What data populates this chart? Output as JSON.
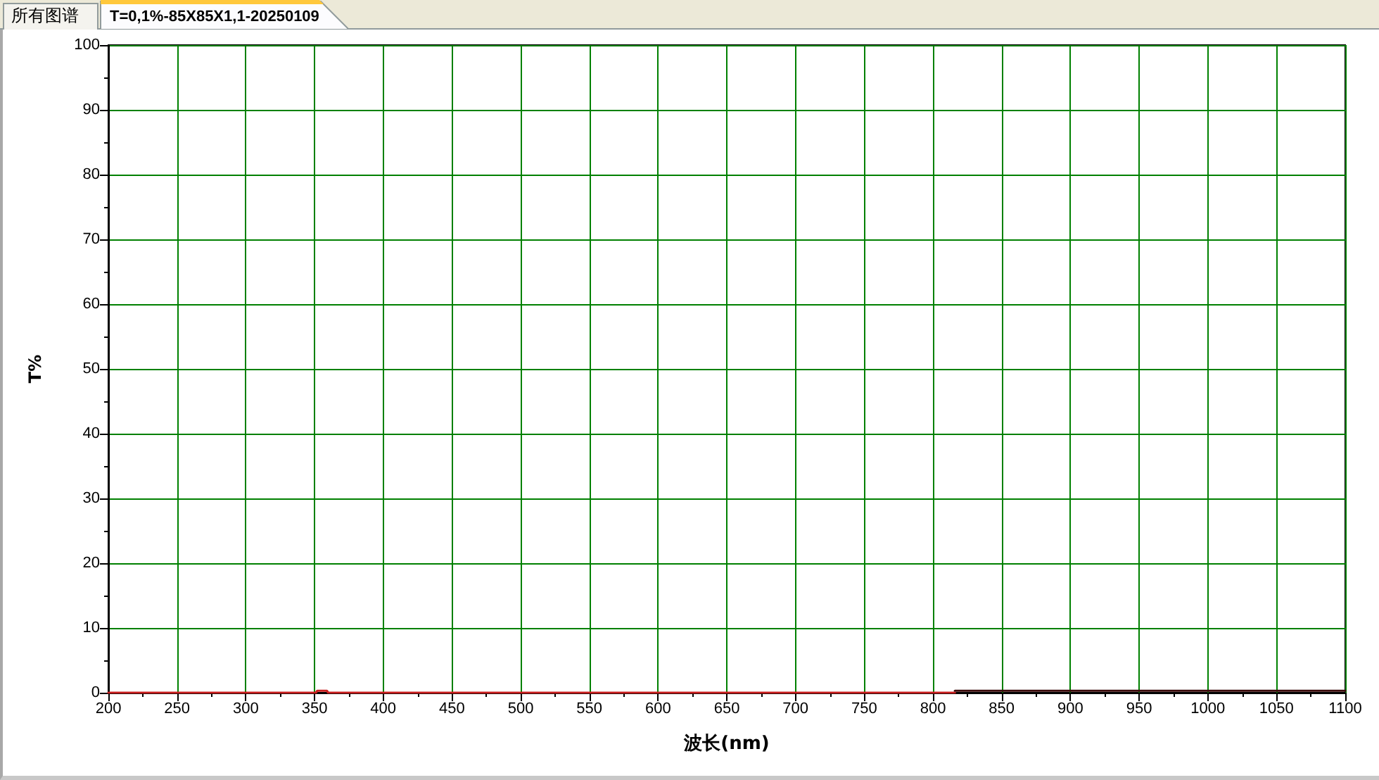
{
  "chart_data": {
    "type": "line",
    "title": "T=0,1%-85X85X1,1-20250109",
    "annotations": [
      "所有图谱"
    ],
    "xlabel": "波长(nm)",
    "ylabel": "T%",
    "xlim": [
      200,
      1100
    ],
    "xticks": [
      200,
      250,
      300,
      350,
      400,
      450,
      500,
      550,
      600,
      650,
      700,
      750,
      800,
      850,
      900,
      950,
      1000,
      1050,
      1100
    ],
    "ylim": [
      0,
      100
    ],
    "yticks": [
      0,
      10,
      20,
      30,
      40,
      50,
      60,
      70,
      80,
      90,
      100
    ],
    "grid": true,
    "line_style": "solid",
    "series": [
      {
        "color": "#c81e1e",
        "x": [
          200,
          351,
          352,
          359,
          360,
          816
        ],
        "values": [
          0,
          0,
          0.3,
          0.3,
          0,
          0
        ]
      },
      {
        "color": "#3a0a0a",
        "x": [
          816,
          1100
        ],
        "values": [
          0.3,
          0.3
        ]
      }
    ]
  }
}
